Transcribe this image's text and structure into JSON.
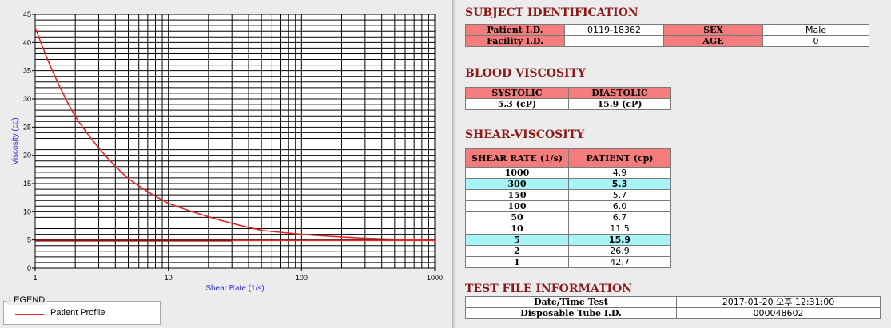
{
  "chart_data": {
    "type": "line",
    "xlabel": "Shear Rate (1/s)",
    "ylabel": "Viscosity (cp)",
    "x_scale": "log",
    "xlim": [
      1,
      1000
    ],
    "ylim": [
      0,
      45
    ],
    "x_ticks": [
      "1",
      "10",
      "100",
      "1000"
    ],
    "y_ticks": [
      "0",
      "5",
      "10",
      "15",
      "20",
      "25",
      "30",
      "35",
      "40",
      "45"
    ],
    "grid": true,
    "series": [
      {
        "name": "Patient Profile",
        "color": "#e32727",
        "x": [
          1,
          2,
          5,
          10,
          50,
          100,
          150,
          300,
          1000
        ],
        "y": [
          42.7,
          26.9,
          15.9,
          11.5,
          6.7,
          6.0,
          5.7,
          5.3,
          4.9
        ]
      },
      {
        "color": "#8b1414",
        "x": [
          1,
          30
        ],
        "y": [
          4.9,
          4.9
        ]
      }
    ]
  },
  "legend": {
    "title": "LEGEND",
    "item": "Patient Profile"
  },
  "subject": {
    "title": "SUBJECT IDENTIFICATION",
    "patient_label": "Patient I.D.",
    "patient_value": "0119-18362",
    "sex_label": "SEX",
    "sex_value": "Male",
    "facility_label": "Facility I.D.",
    "facility_value": "",
    "age_label": "AGE",
    "age_value": "0"
  },
  "blood": {
    "title": "BLOOD VISCOSITY",
    "systolic_label": "SYSTOLIC",
    "diastolic_label": "DIASTOLIC",
    "systolic_value": "5.3 (cP)",
    "diastolic_value": "15.9 (cP)"
  },
  "shear": {
    "title": "SHEAR-VISCOSITY",
    "col1": "SHEAR RATE (1/s)",
    "col2": "PATIENT (cp)",
    "rows": [
      {
        "rate": "1000",
        "val": "4.9",
        "hl": false
      },
      {
        "rate": "300",
        "val": "5.3",
        "hl": true
      },
      {
        "rate": "150",
        "val": "5.7",
        "hl": false
      },
      {
        "rate": "100",
        "val": "6.0",
        "hl": false
      },
      {
        "rate": "50",
        "val": "6.7",
        "hl": false
      },
      {
        "rate": "10",
        "val": "11.5",
        "hl": false
      },
      {
        "rate": "5",
        "val": "15.9",
        "hl": true
      },
      {
        "rate": "2",
        "val": "26.9",
        "hl": false
      },
      {
        "rate": "1",
        "val": "42.7",
        "hl": false
      }
    ]
  },
  "testfile": {
    "title": "TEST FILE INFORMATION",
    "date_label": "Date/Time Test",
    "date_value": "2017-01-20  오후 12:31:00",
    "tube_label": "Disposable Tube I.D.",
    "tube_value": "000048602"
  }
}
